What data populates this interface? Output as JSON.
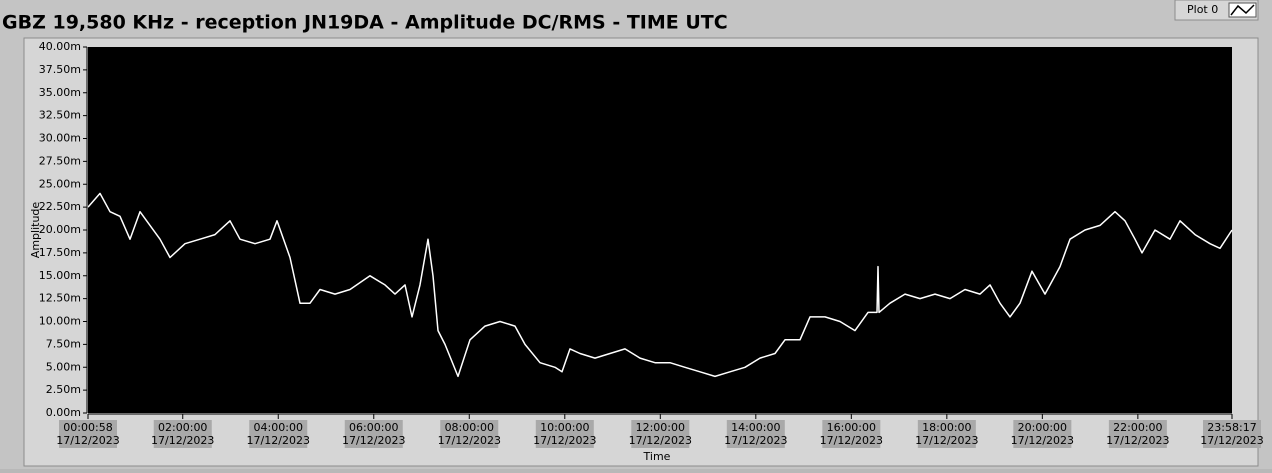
{
  "chart_data": {
    "type": "line",
    "title": "GBZ  19,580 KHz - reception JN19DA -  Amplitude DC/RMS   - TIME UTC",
    "x_label": "Time",
    "y_label": "Amplitude",
    "x": [
      58,
      963,
      1716,
      2470,
      3224,
      3978,
      4732,
      5485,
      6239,
      7370,
      8501,
      9631,
      10762,
      11516,
      12646,
      13777,
      14305,
      15285,
      16039,
      16792,
      17546,
      18677,
      19808,
      21315,
      22446,
      23200,
      23954,
      24481,
      25084,
      25687,
      26064,
      26441,
      26969,
      27949,
      28853,
      29984,
      31115,
      32245,
      32999,
      34130,
      35260,
      35788,
      36391,
      37145,
      38276,
      39407,
      40537,
      41668,
      42799,
      43930,
      45060,
      46191,
      47322,
      48452,
      49583,
      50714,
      51844,
      52598,
      53729,
      54483,
      55613,
      56744,
      57875,
      58855,
      59533,
      59609,
      59684,
      60514,
      61645,
      62776,
      63906,
      65037,
      66168,
      67298,
      68052,
      68806,
      69560,
      70313,
      71218,
      72198,
      73328,
      74082,
      75213,
      76344,
      77474,
      78228,
      78982,
      79510,
      80490,
      81620,
      82374,
      83505,
      84636,
      85389,
      86297
    ],
    "series": [
      {
        "name": "Plot 0",
        "color": "#ffffff",
        "values": [
          22.5,
          24,
          22,
          21.5,
          19,
          22,
          20.5,
          19,
          17,
          18.5,
          19,
          19.5,
          21,
          19,
          18.5,
          19,
          21,
          17,
          12,
          12,
          13.5,
          13,
          13.5,
          15,
          14,
          13,
          14,
          10.5,
          14,
          19,
          15,
          9,
          7.5,
          4,
          8,
          9.5,
          10,
          9.5,
          7.5,
          5.5,
          5,
          4.5,
          7,
          6.5,
          6,
          6.5,
          7,
          6,
          5.5,
          5.5,
          5,
          4.5,
          4,
          4.5,
          5,
          6,
          6.5,
          8,
          8,
          10.5,
          10.5,
          10,
          9,
          11,
          11,
          16,
          11,
          12,
          13,
          12.5,
          13,
          12.5,
          13.5,
          13,
          14,
          12,
          10.5,
          12,
          15.5,
          13,
          16,
          19,
          20,
          20.5,
          22,
          21,
          19,
          17.5,
          20,
          19,
          21,
          19.5,
          18.5,
          18,
          20
        ]
      }
    ],
    "xlim": [
      58,
      86297
    ],
    "xticks": [
      {
        "value": 58,
        "label": "00:00:58",
        "date": "17/12/2023"
      },
      {
        "value": 7200,
        "label": "02:00:00",
        "date": "17/12/2023"
      },
      {
        "value": 14400,
        "label": "04:00:00",
        "date": "17/12/2023"
      },
      {
        "value": 21600,
        "label": "06:00:00",
        "date": "17/12/2023"
      },
      {
        "value": 28800,
        "label": "08:00:00",
        "date": "17/12/2023"
      },
      {
        "value": 36000,
        "label": "10:00:00",
        "date": "17/12/2023"
      },
      {
        "value": 43200,
        "label": "12:00:00",
        "date": "17/12/2023"
      },
      {
        "value": 50400,
        "label": "14:00:00",
        "date": "17/12/2023"
      },
      {
        "value": 57600,
        "label": "16:00:00",
        "date": "17/12/2023"
      },
      {
        "value": 64800,
        "label": "18:00:00",
        "date": "17/12/2023"
      },
      {
        "value": 72000,
        "label": "20:00:00",
        "date": "17/12/2023"
      },
      {
        "value": 79200,
        "label": "22:00:00",
        "date": "17/12/2023"
      },
      {
        "value": 86297,
        "label": "23:58:17",
        "date": "17/12/2023"
      }
    ],
    "ylim": [
      0,
      40
    ],
    "yticks": [
      {
        "value": 0,
        "label": "0.00m"
      },
      {
        "value": 2.5,
        "label": "2.50m"
      },
      {
        "value": 5,
        "label": "5.00m"
      },
      {
        "value": 7.5,
        "label": "7.50m"
      },
      {
        "value": 10,
        "label": "10.00m"
      },
      {
        "value": 12.5,
        "label": "12.50m"
      },
      {
        "value": 15,
        "label": "15.00m"
      },
      {
        "value": 17.5,
        "label": "17.50m"
      },
      {
        "value": 20,
        "label": "20.00m"
      },
      {
        "value": 22.5,
        "label": "22.50m"
      },
      {
        "value": 25,
        "label": "25.00m"
      },
      {
        "value": 27.5,
        "label": "27.50m"
      },
      {
        "value": 30,
        "label": "30.00m"
      },
      {
        "value": 32.5,
        "label": "32.50m"
      },
      {
        "value": 35,
        "label": "35.00m"
      },
      {
        "value": 37.5,
        "label": "37.50m"
      },
      {
        "value": 40,
        "label": "40.00m"
      }
    ],
    "background": "#000000",
    "grid": false,
    "legend": "top-right"
  }
}
